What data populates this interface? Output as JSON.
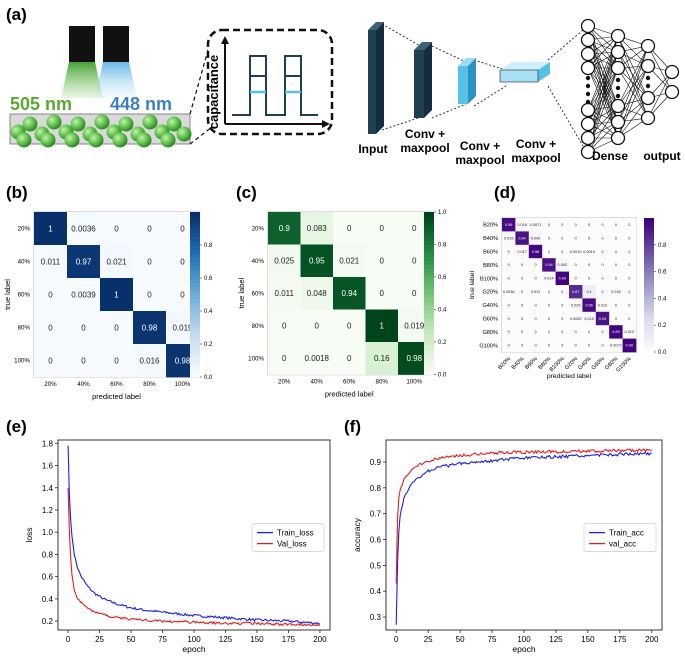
{
  "panel_labels": {
    "a": "(a)",
    "b": "(b)",
    "c": "(c)",
    "d": "(d)",
    "e": "(e)",
    "f": "(f)"
  },
  "schematic": {
    "wavelength_green": "505 nm",
    "wavelength_blue": "448 nm",
    "capacitance_label": "capacitance",
    "network": {
      "input": "Input",
      "conv1": [
        "Conv +",
        "maxpool"
      ],
      "conv2": [
        "Conv +",
        "maxpool"
      ],
      "conv3": [
        "Conv +",
        "maxpool"
      ],
      "dense": "Dense",
      "output": "output"
    },
    "colors": {
      "green": "#5aa832",
      "blue": "#3d7fc0",
      "net_dark": "#1f3f52",
      "net_light": "#59c0e6"
    }
  },
  "chart_data": [
    {
      "id": "b",
      "type": "heatmap",
      "colormap": "blues",
      "rows": [
        "20%",
        "40%",
        "60%",
        "80%",
        "100%"
      ],
      "cols": [
        "20%",
        "40%",
        "60%",
        "80%",
        "100%"
      ],
      "values": [
        [
          1,
          0.0036,
          0,
          0,
          0
        ],
        [
          0.011,
          0.97,
          0.021,
          0,
          0
        ],
        [
          0,
          0.0039,
          1,
          0,
          0
        ],
        [
          0,
          0,
          0,
          0.98,
          0.019
        ],
        [
          0,
          0,
          0,
          0.016,
          0.98
        ]
      ],
      "labels": [
        [
          "1",
          "0.0036",
          "0",
          "0",
          "0"
        ],
        [
          "0.011",
          "0.97",
          "0.021",
          "0",
          "0"
        ],
        [
          "0",
          "0.0039",
          "1",
          "0",
          "0"
        ],
        [
          "0",
          "0",
          "0",
          "0.98",
          "0.019"
        ],
        [
          "0",
          "0",
          "0",
          "0.016",
          "0.98"
        ]
      ],
      "xlabel": "predicted label",
      "ylabel": "true label",
      "colorbar_ticks": [
        "0.0",
        "0.2",
        "0.4",
        "0.6",
        "0.8"
      ],
      "colorbar_values": [
        0,
        0.2,
        0.4,
        0.6,
        0.8
      ],
      "vmax": 1.0
    },
    {
      "id": "c",
      "type": "heatmap",
      "colormap": "greens",
      "rows": [
        "20%",
        "40%",
        "60%",
        "80%",
        "100%"
      ],
      "cols": [
        "20%",
        "40%",
        "60%",
        "80%",
        "100%"
      ],
      "values": [
        [
          0.9,
          0.083,
          0,
          0,
          0
        ],
        [
          0.025,
          0.95,
          0.021,
          0,
          0
        ],
        [
          0.011,
          0.048,
          0.94,
          0,
          0
        ],
        [
          0,
          0,
          0,
          1,
          0.019
        ],
        [
          0,
          0.0018,
          0,
          0.16,
          0.98
        ]
      ],
      "labels": [
        [
          "0.9",
          "0.083",
          "0",
          "0",
          "0"
        ],
        [
          "0.025",
          "0.95",
          "0.021",
          "0",
          "0"
        ],
        [
          "0.011",
          "0.048",
          "0.94",
          "0",
          "0"
        ],
        [
          "0",
          "0",
          "0",
          "1",
          "0.019"
        ],
        [
          "0",
          "0.0018",
          "0",
          "0.16",
          "0.98"
        ]
      ],
      "xlabel": "predicted label",
      "ylabel": "true label",
      "colorbar_ticks": [
        "0.0",
        "0.2",
        "0.4",
        "0.6",
        "0.8",
        "1.0"
      ],
      "colorbar_values": [
        0,
        0.2,
        0.4,
        0.6,
        0.8,
        1.0
      ],
      "vmax": 1.0
    },
    {
      "id": "d",
      "type": "heatmap",
      "colormap": "purples",
      "rows": [
        "B20%",
        "B40%",
        "B60%",
        "B80%",
        "B100%",
        "G20%",
        "G40%",
        "G60%",
        "G80%",
        "G100%"
      ],
      "cols": [
        "B20%",
        "B40%",
        "B60%",
        "B80%",
        "B100%",
        "G20%",
        "G40%",
        "G60%",
        "G80%",
        "G100%"
      ],
      "values": [
        [
          0.96,
          0.016,
          0.0071,
          0,
          0,
          0,
          0,
          0,
          0,
          0
        ],
        [
          0.015,
          0.94,
          0.042,
          0,
          0,
          0,
          0,
          0,
          0,
          0
        ],
        [
          0,
          0.017,
          0.98,
          0,
          0,
          0.0019,
          0.0019,
          0,
          0,
          0
        ],
        [
          0,
          0,
          0,
          0.94,
          0.042,
          0,
          0,
          0,
          0,
          0
        ],
        [
          0,
          0,
          0,
          0.014,
          0.99,
          0,
          0,
          0,
          0,
          0
        ],
        [
          0.0036,
          0,
          0.011,
          0,
          0,
          0.87,
          0.1,
          0,
          0.018,
          0
        ],
        [
          0,
          0,
          0,
          0,
          0,
          0.026,
          0.96,
          0.012,
          0,
          0
        ],
        [
          0,
          0,
          0,
          0,
          0,
          0.0052,
          0.019,
          0.94,
          0,
          0
        ],
        [
          0,
          0,
          0,
          0,
          0,
          0,
          0,
          0,
          0.99,
          0.013
        ],
        [
          0,
          0,
          0,
          0,
          0,
          0,
          0,
          0,
          0.0072,
          0.99
        ]
      ],
      "labels": [
        [
          "0.96",
          "0.016",
          "0.0071",
          "0",
          "0",
          "0",
          "0",
          "0",
          "0",
          "0"
        ],
        [
          "0.015",
          "0.94",
          "0.042",
          "0",
          "0",
          "0",
          "0",
          "0",
          "0",
          "0"
        ],
        [
          "0",
          "0.017",
          "0.98",
          "0",
          "0",
          "0.0019",
          "0.0019",
          "0",
          "0",
          "0"
        ],
        [
          "0",
          "0",
          "0",
          "0.94",
          "0.042",
          "0",
          "0",
          "0",
          "0",
          "0"
        ],
        [
          "0",
          "0",
          "0",
          "0.014",
          "0.99",
          "0",
          "0",
          "0",
          "0",
          "0"
        ],
        [
          "0.0036",
          "0",
          "0.011",
          "0",
          "0",
          "0.87",
          "0.1",
          "0",
          "0.018",
          "0"
        ],
        [
          "0",
          "0",
          "0",
          "0",
          "0",
          "0.026",
          "0.96",
          "0.012",
          "0",
          "0"
        ],
        [
          "0",
          "0",
          "0",
          "0",
          "0",
          "0.0052",
          "0.019",
          "0.94",
          "0",
          "0"
        ],
        [
          "0",
          "0",
          "0",
          "0",
          "0",
          "0",
          "0",
          "0",
          "0.99",
          "0.013"
        ],
        [
          "0",
          "0",
          "0",
          "0",
          "0",
          "0",
          "0",
          "0",
          "0.0072",
          "0.99"
        ]
      ],
      "xlabel": "predicted label",
      "ylabel": "true label",
      "colorbar_ticks": [
        "0.0",
        "0.2",
        "0.4",
        "0.6",
        "0.8"
      ],
      "colorbar_values": [
        0,
        0.2,
        0.4,
        0.6,
        0.8
      ],
      "vmax": 1.0
    },
    {
      "id": "e",
      "type": "line",
      "xlabel": "epoch",
      "ylabel": "loss",
      "xlim": [
        -8,
        208
      ],
      "ylim": [
        0.12,
        1.83
      ],
      "xticks": [
        0,
        25,
        50,
        75,
        100,
        125,
        150,
        175,
        200
      ],
      "yticks": [
        0.2,
        0.4,
        0.6,
        0.8,
        1.0,
        1.2,
        1.4,
        1.6,
        1.8
      ],
      "ytick_labels": [
        "0.2",
        "0.4",
        "0.6",
        "0.8",
        "1.0",
        "1.2",
        "1.4",
        "1.6",
        "1.8"
      ],
      "legend_position": "center-right",
      "series": [
        {
          "name": "Train_loss",
          "color": "#1f1fe0",
          "x": [
            0,
            1,
            2,
            3,
            5,
            7,
            10,
            15,
            20,
            25,
            30,
            40,
            50,
            60,
            75,
            100,
            125,
            150,
            175,
            200
          ],
          "y": [
            1.78,
            1.36,
            1.12,
            0.97,
            0.8,
            0.7,
            0.61,
            0.52,
            0.46,
            0.42,
            0.39,
            0.35,
            0.32,
            0.3,
            0.28,
            0.25,
            0.23,
            0.21,
            0.2,
            0.18
          ]
        },
        {
          "name": "Val_loss",
          "color": "#e01f1f",
          "x": [
            0,
            1,
            2,
            3,
            5,
            7,
            10,
            15,
            20,
            25,
            30,
            40,
            50,
            60,
            75,
            100,
            125,
            150,
            175,
            200
          ],
          "y": [
            1.4,
            1.02,
            0.78,
            0.62,
            0.48,
            0.42,
            0.37,
            0.32,
            0.29,
            0.27,
            0.25,
            0.23,
            0.22,
            0.21,
            0.2,
            0.19,
            0.18,
            0.18,
            0.17,
            0.17
          ]
        }
      ]
    },
    {
      "id": "f",
      "type": "line",
      "xlabel": "epoch",
      "ylabel": "accuracy",
      "xlim": [
        -8,
        208
      ],
      "ylim": [
        0.25,
        0.985
      ],
      "xticks": [
        0,
        25,
        50,
        75,
        100,
        125,
        150,
        175,
        200
      ],
      "yticks": [
        0.3,
        0.4,
        0.5,
        0.6,
        0.7,
        0.8,
        0.9
      ],
      "ytick_labels": [
        "0.3",
        "0.4",
        "0.5",
        "0.6",
        "0.7",
        "0.8",
        "0.9"
      ],
      "legend_position": "center-right",
      "series": [
        {
          "name": "Train_acc",
          "color": "#1f1fe0",
          "x": [
            0,
            1,
            2,
            3,
            5,
            7,
            10,
            15,
            20,
            25,
            30,
            40,
            50,
            60,
            75,
            100,
            125,
            150,
            175,
            200
          ],
          "y": [
            0.27,
            0.5,
            0.63,
            0.69,
            0.74,
            0.77,
            0.8,
            0.83,
            0.85,
            0.865,
            0.875,
            0.885,
            0.895,
            0.9,
            0.905,
            0.915,
            0.92,
            0.925,
            0.93,
            0.932
          ]
        },
        {
          "name": "val_acc",
          "color": "#e01f1f",
          "x": [
            0,
            1,
            2,
            3,
            5,
            7,
            10,
            15,
            20,
            25,
            30,
            40,
            50,
            60,
            75,
            100,
            125,
            150,
            175,
            200
          ],
          "y": [
            0.43,
            0.68,
            0.76,
            0.79,
            0.82,
            0.84,
            0.86,
            0.88,
            0.895,
            0.905,
            0.91,
            0.92,
            0.925,
            0.93,
            0.935,
            0.938,
            0.94,
            0.942,
            0.944,
            0.945
          ]
        }
      ]
    }
  ]
}
